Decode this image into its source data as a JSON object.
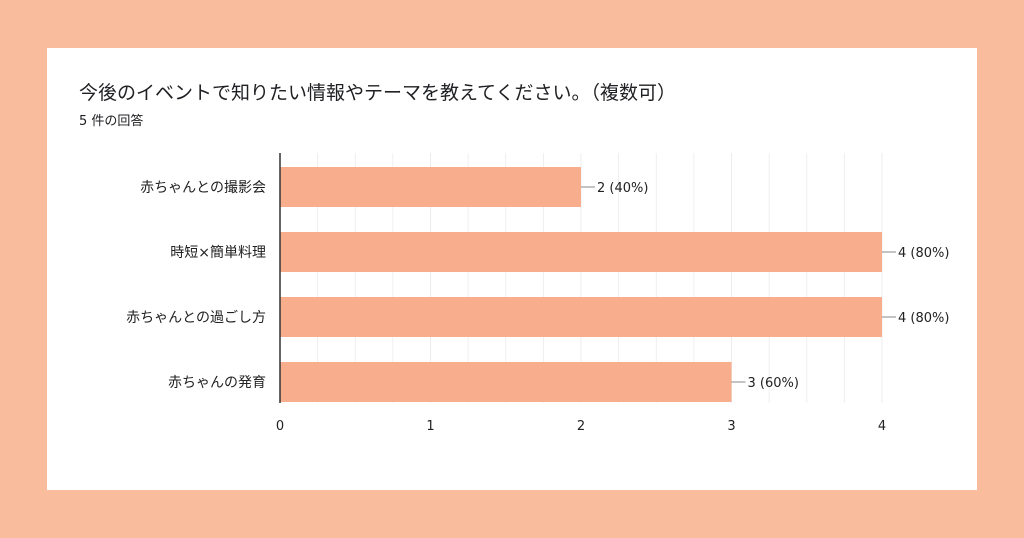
{
  "card": {
    "title": "今後のイベントで知りたい情報やテーマを教えてください。（複数可）",
    "response_count": "5 件の回答"
  },
  "colors": {
    "page_background": "#f9bc9d",
    "bar": "#f8ad8c",
    "grid": "#ececec",
    "axis": "#333333"
  },
  "chart_data": {
    "type": "bar",
    "orientation": "horizontal",
    "categories": [
      "赤ちゃんとの撮影会",
      "時短×簡単料理",
      "赤ちゃんとの過ごし方",
      "赤ちゃんの発育"
    ],
    "values": [
      2,
      4,
      4,
      3
    ],
    "value_labels": [
      "2 (40%)",
      "4 (80%)",
      "4 (80%)",
      "3 (60%)"
    ],
    "xlim": [
      0,
      4
    ],
    "xticks": [
      0,
      1,
      2,
      3,
      4
    ],
    "xtick_labels": [
      "0",
      "1",
      "2",
      "3",
      "4"
    ],
    "grid": true,
    "legend": "none"
  }
}
